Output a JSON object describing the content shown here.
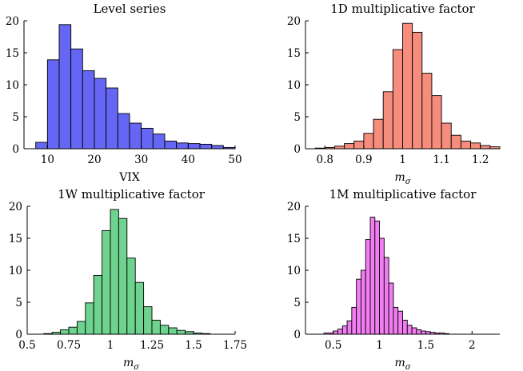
{
  "chart_data": [
    {
      "type": "bar",
      "title": "Level series",
      "xlabel": "VIX",
      "ylabel": "",
      "color": "#6666f5",
      "xlim": [
        5,
        50
      ],
      "ylim": [
        0,
        20
      ],
      "xticks": [
        "10",
        "20",
        "30",
        "40",
        "50"
      ],
      "yticks": [
        "0",
        "5",
        "10",
        "15",
        "20"
      ],
      "bins": [
        {
          "x0": 7.5,
          "x1": 10,
          "y": 1
        },
        {
          "x0": 10,
          "x1": 12.5,
          "y": 13.9
        },
        {
          "x0": 12.5,
          "x1": 15,
          "y": 19.4
        },
        {
          "x0": 15,
          "x1": 17.5,
          "y": 15.6
        },
        {
          "x0": 17.5,
          "x1": 20,
          "y": 12.2
        },
        {
          "x0": 20,
          "x1": 22.5,
          "y": 11
        },
        {
          "x0": 22.5,
          "x1": 25,
          "y": 9.5
        },
        {
          "x0": 25,
          "x1": 27.5,
          "y": 5.5
        },
        {
          "x0": 27.5,
          "x1": 30,
          "y": 4
        },
        {
          "x0": 30,
          "x1": 32.5,
          "y": 3.2
        },
        {
          "x0": 32.5,
          "x1": 35,
          "y": 2.3
        },
        {
          "x0": 35,
          "x1": 37.5,
          "y": 1.2
        },
        {
          "x0": 37.5,
          "x1": 40,
          "y": 0.9
        },
        {
          "x0": 40,
          "x1": 42.5,
          "y": 0.8
        },
        {
          "x0": 42.5,
          "x1": 45,
          "y": 0.7
        },
        {
          "x0": 45,
          "x1": 47.5,
          "y": 0.5
        },
        {
          "x0": 47.5,
          "x1": 50,
          "y": 0.2
        }
      ]
    },
    {
      "type": "bar",
      "title": "1D multiplicative factor",
      "xlabel": "mσ",
      "ylabel": "",
      "color": "#f68c7c",
      "xlim": [
        0.75,
        1.25
      ],
      "ylim": [
        0,
        20
      ],
      "xticks": [
        "0.8",
        "0.9",
        "1",
        "1.1",
        "1.2"
      ],
      "yticks": [
        "0",
        "5",
        "10",
        "15",
        "20"
      ],
      "bins": [
        {
          "x0": 0.775,
          "x1": 0.8,
          "y": 0.1
        },
        {
          "x0": 0.8,
          "x1": 0.825,
          "y": 0.2
        },
        {
          "x0": 0.825,
          "x1": 0.85,
          "y": 0.4
        },
        {
          "x0": 0.85,
          "x1": 0.875,
          "y": 0.8
        },
        {
          "x0": 0.875,
          "x1": 0.9,
          "y": 1.2
        },
        {
          "x0": 0.9,
          "x1": 0.925,
          "y": 2.4
        },
        {
          "x0": 0.925,
          "x1": 0.95,
          "y": 4.6
        },
        {
          "x0": 0.95,
          "x1": 0.975,
          "y": 8.9
        },
        {
          "x0": 0.975,
          "x1": 1.0,
          "y": 15.5
        },
        {
          "x0": 1.0,
          "x1": 1.025,
          "y": 19.6
        },
        {
          "x0": 1.025,
          "x1": 1.05,
          "y": 18.2
        },
        {
          "x0": 1.05,
          "x1": 1.075,
          "y": 11.8
        },
        {
          "x0": 1.075,
          "x1": 1.1,
          "y": 8.3
        },
        {
          "x0": 1.1,
          "x1": 1.125,
          "y": 4
        },
        {
          "x0": 1.125,
          "x1": 1.15,
          "y": 2.1
        },
        {
          "x0": 1.15,
          "x1": 1.175,
          "y": 1.2
        },
        {
          "x0": 1.175,
          "x1": 1.2,
          "y": 0.9
        },
        {
          "x0": 1.2,
          "x1": 1.225,
          "y": 0.5
        },
        {
          "x0": 1.225,
          "x1": 1.25,
          "y": 0.3
        }
      ]
    },
    {
      "type": "bar",
      "title": "1W multiplicative factor",
      "xlabel": "mσ",
      "ylabel": "",
      "color": "#6ed38e",
      "xlim": [
        0.5,
        1.75
      ],
      "ylim": [
        0,
        20
      ],
      "xticks": [
        "0.5",
        "0.75",
        "1",
        "1.25",
        "1.5",
        "1.75"
      ],
      "yticks": [
        "0",
        "5",
        "10",
        "15",
        "20"
      ],
      "bins": [
        {
          "x0": 0.6,
          "x1": 0.65,
          "y": 0.1
        },
        {
          "x0": 0.65,
          "x1": 0.7,
          "y": 0.3
        },
        {
          "x0": 0.7,
          "x1": 0.75,
          "y": 0.7
        },
        {
          "x0": 0.75,
          "x1": 0.8,
          "y": 1.1
        },
        {
          "x0": 0.8,
          "x1": 0.85,
          "y": 2
        },
        {
          "x0": 0.85,
          "x1": 0.9,
          "y": 4.9
        },
        {
          "x0": 0.9,
          "x1": 0.95,
          "y": 9.2
        },
        {
          "x0": 0.95,
          "x1": 1.0,
          "y": 16.2
        },
        {
          "x0": 1.0,
          "x1": 1.05,
          "y": 19.5
        },
        {
          "x0": 1.05,
          "x1": 1.1,
          "y": 18.1
        },
        {
          "x0": 1.1,
          "x1": 1.15,
          "y": 11.9
        },
        {
          "x0": 1.15,
          "x1": 1.2,
          "y": 8.1
        },
        {
          "x0": 1.2,
          "x1": 1.25,
          "y": 4.3
        },
        {
          "x0": 1.25,
          "x1": 1.3,
          "y": 2.2
        },
        {
          "x0": 1.3,
          "x1": 1.35,
          "y": 1.4
        },
        {
          "x0": 1.35,
          "x1": 1.4,
          "y": 1
        },
        {
          "x0": 1.4,
          "x1": 1.45,
          "y": 0.6
        },
        {
          "x0": 1.45,
          "x1": 1.5,
          "y": 0.4
        },
        {
          "x0": 1.5,
          "x1": 1.55,
          "y": 0.2
        },
        {
          "x0": 1.55,
          "x1": 1.6,
          "y": 0.1
        }
      ]
    },
    {
      "type": "bar",
      "title": "1M multiplicative factor",
      "xlabel": "mσ",
      "ylabel": "",
      "color": "#f27cf2",
      "xlim": [
        0.2,
        2.3
      ],
      "ylim": [
        0,
        20
      ],
      "xticks": [
        "0.5",
        "1",
        "1.5",
        "2"
      ],
      "yticks": [
        "0",
        "5",
        "10",
        "15",
        "20"
      ],
      "bins": [
        {
          "x0": 0.4,
          "x1": 0.5,
          "y": 0.2
        },
        {
          "x0": 0.5,
          "x1": 0.55,
          "y": 0.5
        },
        {
          "x0": 0.55,
          "x1": 0.6,
          "y": 0.8
        },
        {
          "x0": 0.6,
          "x1": 0.65,
          "y": 1.3
        },
        {
          "x0": 0.65,
          "x1": 0.7,
          "y": 2.1
        },
        {
          "x0": 0.7,
          "x1": 0.75,
          "y": 4.2
        },
        {
          "x0": 0.75,
          "x1": 0.8,
          "y": 8.6
        },
        {
          "x0": 0.8,
          "x1": 0.85,
          "y": 10
        },
        {
          "x0": 0.85,
          "x1": 0.9,
          "y": 14.8
        },
        {
          "x0": 0.9,
          "x1": 0.95,
          "y": 18.3
        },
        {
          "x0": 0.95,
          "x1": 1.0,
          "y": 17.7
        },
        {
          "x0": 1.0,
          "x1": 1.05,
          "y": 15
        },
        {
          "x0": 1.05,
          "x1": 1.1,
          "y": 12
        },
        {
          "x0": 1.1,
          "x1": 1.15,
          "y": 8
        },
        {
          "x0": 1.15,
          "x1": 1.2,
          "y": 4.2
        },
        {
          "x0": 1.2,
          "x1": 1.25,
          "y": 3.6
        },
        {
          "x0": 1.25,
          "x1": 1.3,
          "y": 2.2
        },
        {
          "x0": 1.3,
          "x1": 1.35,
          "y": 1.4
        },
        {
          "x0": 1.35,
          "x1": 1.4,
          "y": 1
        },
        {
          "x0": 1.4,
          "x1": 1.45,
          "y": 0.7
        },
        {
          "x0": 1.45,
          "x1": 1.5,
          "y": 0.5
        },
        {
          "x0": 1.5,
          "x1": 1.55,
          "y": 0.4
        },
        {
          "x0": 1.55,
          "x1": 1.6,
          "y": 0.3
        },
        {
          "x0": 1.6,
          "x1": 1.65,
          "y": 0.2
        },
        {
          "x0": 1.65,
          "x1": 1.7,
          "y": 0.2
        },
        {
          "x0": 1.7,
          "x1": 1.75,
          "y": 0.1
        }
      ]
    }
  ]
}
